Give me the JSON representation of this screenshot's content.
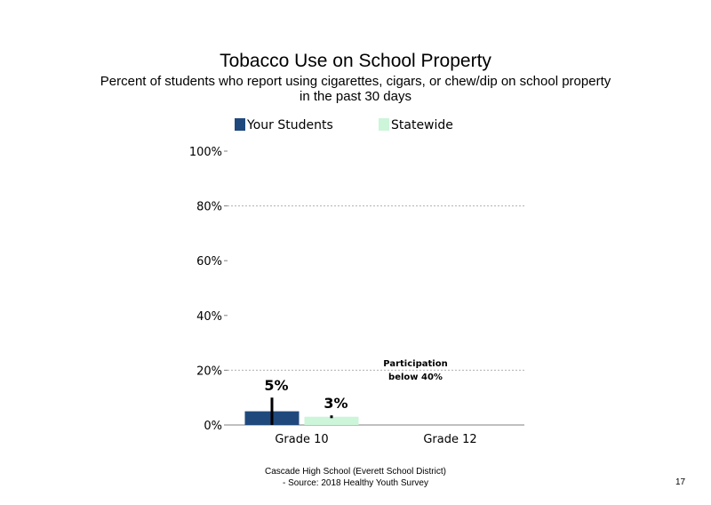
{
  "chart_data": {
    "type": "bar",
    "title": "Tobacco Use on School Property",
    "subtitle_lines": [
      "Percent of students who report using cigarettes, cigars, or chew/dip on school property",
      "in the past 30 days"
    ],
    "categories": [
      "Grade 10",
      "Grade 12"
    ],
    "series": [
      {
        "name": "Your Students",
        "color": "#1f497d",
        "values": [
          5,
          null
        ],
        "error_high": [
          10,
          null
        ],
        "value_labels": [
          "5%",
          ""
        ]
      },
      {
        "name": "Statewide",
        "color": "#ccf5da",
        "values": [
          3,
          null
        ],
        "error_high": [
          3.5,
          null
        ],
        "error_low": [
          2.5,
          null
        ],
        "value_labels": [
          "3%",
          ""
        ]
      }
    ],
    "ylim": [
      0,
      100
    ],
    "yticks": [
      0,
      20,
      40,
      60,
      80,
      100
    ],
    "ytick_labels": [
      "0%",
      "20%",
      "40%",
      "60%",
      "80%",
      "100%"
    ],
    "gridlines": [
      20,
      80
    ],
    "grid_color": "#b0b0b0",
    "legend_position": "top",
    "annotations": [
      {
        "category": "Grade 12",
        "lines": [
          "Participation",
          "below 40%"
        ]
      }
    ]
  },
  "footer": {
    "line1": "Cascade High School (Everett School District)",
    "line2": "- Source: 2018 Healthy Youth Survey"
  },
  "page_number": "17"
}
